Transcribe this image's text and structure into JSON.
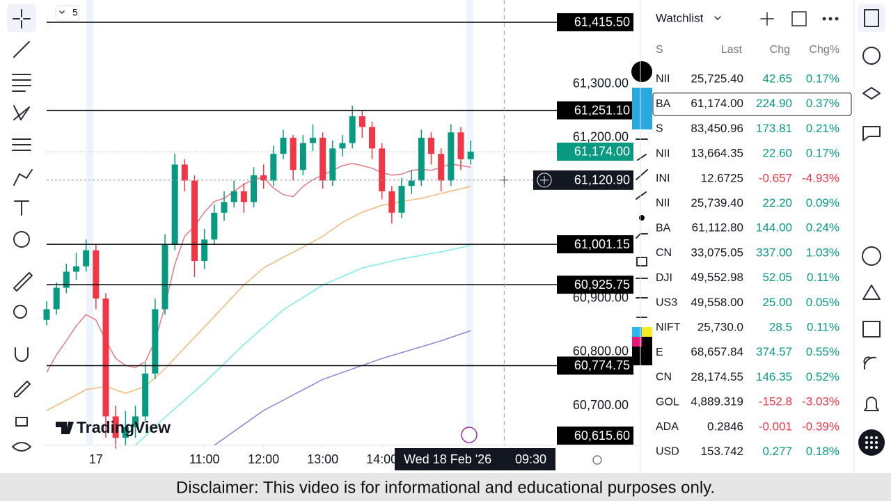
{
  "toolbar": {
    "badge": "5"
  },
  "chart_data": {
    "type": "candlestick",
    "logo": "TradingView",
    "ylim": [
      60626,
      61457
    ],
    "yticks": [
      {
        "value": 61300,
        "label": "61,300.00"
      },
      {
        "value": 61200,
        "label": "61,200.00"
      },
      {
        "value": 60900,
        "label": "60,900.00"
      },
      {
        "value": 60800,
        "label": "60,800.00"
      },
      {
        "value": 60700,
        "label": "60,700.00"
      }
    ],
    "xticks": [
      {
        "value": 5,
        "label": "17"
      },
      {
        "value": 16,
        "label": "11:00"
      },
      {
        "value": 22,
        "label": "12:00"
      },
      {
        "value": 28,
        "label": "13:00"
      },
      {
        "value": 34,
        "label": "14:00"
      }
    ],
    "up_color": "#089981",
    "down_color": "#f23645",
    "open": [
      60860,
      60880,
      60920,
      60950,
      60960,
      60990,
      60900,
      60680,
      60640,
      60660,
      60680,
      60760,
      60880,
      61000,
      61150,
      61120,
      60970,
      61010,
      61060,
      61080,
      61100,
      61080,
      61130,
      61120,
      61170,
      61200,
      61140,
      61190,
      61200,
      61120,
      61180,
      61190,
      61240,
      61220,
      61180,
      61100,
      61060,
      61110,
      61120,
      61200,
      61170,
      61120,
      61210,
      61160
    ],
    "high": [
      60895,
      60930,
      60965,
      60985,
      61010,
      61000,
      60910,
      60700,
      60690,
      60700,
      60780,
      60900,
      61020,
      61170,
      61160,
      61130,
      61030,
      61075,
      61100,
      61120,
      61115,
      61145,
      61150,
      61185,
      61215,
      61205,
      61205,
      61225,
      61210,
      61195,
      61205,
      61260,
      61250,
      61230,
      61190,
      61110,
      61125,
      61140,
      61215,
      61210,
      61180,
      61225,
      61220,
      61195
    ],
    "low": [
      60850,
      60870,
      60910,
      60935,
      60950,
      60880,
      60640,
      60620,
      60625,
      60640,
      60670,
      60750,
      60870,
      60990,
      61100,
      60940,
      60955,
      61000,
      61045,
      61070,
      61060,
      61070,
      61105,
      61110,
      61160,
      61120,
      61130,
      61175,
      61105,
      61110,
      61165,
      61180,
      61200,
      61160,
      61085,
      61040,
      61050,
      61095,
      61110,
      61150,
      61100,
      61110,
      61140,
      61150
    ],
    "close": [
      60880,
      60920,
      60950,
      60960,
      60990,
      60900,
      60680,
      60640,
      60660,
      60680,
      60760,
      60880,
      61000,
      61150,
      61120,
      60970,
      61010,
      61060,
      61080,
      61100,
      61080,
      61130,
      61120,
      61170,
      61200,
      61140,
      61190,
      61200,
      61120,
      61180,
      61190,
      61240,
      61220,
      61180,
      61100,
      61060,
      61110,
      61120,
      61200,
      61170,
      61120,
      61210,
      61160,
      61174
    ],
    "lines": [
      {
        "color": "#e57a82",
        "values": [
          60762,
          60795,
          60821,
          60849,
          60870,
          60860,
          60821,
          60788,
          60775,
          60771,
          60782,
          60821,
          60886,
          60964,
          61016,
          61035,
          61061,
          61081,
          61087,
          61100,
          61113,
          61122,
          61126,
          61106,
          61094,
          61090,
          61109,
          61122,
          61130,
          61139,
          61148,
          61152,
          61148,
          61143,
          61135,
          61130,
          61132,
          61139,
          61141,
          61139,
          61145,
          61151,
          61148,
          61145
        ]
      },
      {
        "color": "#f2b97a",
        "x": [
          0,
          2,
          4,
          6,
          8,
          10,
          12,
          14,
          16,
          18,
          20,
          22,
          24,
          26,
          28,
          30,
          32,
          34,
          36,
          38,
          40,
          43
        ],
        "values": [
          60691,
          60710,
          60730,
          60736,
          60723,
          60736,
          60769,
          60808,
          60847,
          60886,
          60925,
          60957,
          60977,
          60996,
          61016,
          61042,
          61061,
          61074,
          61081,
          61087,
          61096,
          61109
        ]
      },
      {
        "color": "#7de8e8",
        "x": [
          9,
          12,
          16,
          20,
          24,
          28,
          32,
          36,
          40,
          43
        ],
        "values": [
          60626,
          60678,
          60743,
          60814,
          60879,
          60925,
          60957,
          60974,
          60987,
          60999
        ]
      },
      {
        "color": "#8c7fd6",
        "x": [
          17,
          22,
          28,
          34,
          40,
          43
        ],
        "values": [
          60626,
          60691,
          60749,
          60788,
          60821,
          60840
        ]
      }
    ],
    "levels": [
      {
        "value": 61415.5,
        "label": "61,415.50"
      },
      {
        "value": 61251.1,
        "label": "61,251.10"
      },
      {
        "value": 61001.15,
        "label": "61,001.15"
      },
      {
        "value": 60925.75,
        "label": "60,925.75"
      },
      {
        "value": 60774.75,
        "label": "60,774.75"
      },
      {
        "value": 60615.6,
        "label": "60,615.60"
      }
    ],
    "last_price": {
      "value": 61174,
      "label": "61,174.00",
      "color": "#089981"
    },
    "crosshair": {
      "value": 61120.9,
      "label": "61,120.90",
      "x": 46.4,
      "date": "Wed 18 Feb '26",
      "time": "09:30"
    }
  },
  "watchlist": {
    "title": "Watchlist",
    "columns": [
      "S",
      "Last",
      "Chg",
      "Chg%"
    ],
    "rows": [
      {
        "name": "NII",
        "last": "25,725.40",
        "chg": "42.65",
        "pct": "0.17%",
        "color": "#089981"
      },
      {
        "name": "BA",
        "last": "61,174.00",
        "chg": "224.90",
        "pct": "0.37%",
        "color": "#089981"
      },
      {
        "name": "S",
        "last": "83,450.96",
        "chg": "173.81",
        "pct": "0.21%",
        "color": "#089981"
      },
      {
        "name": "NII",
        "last": "13,664.35",
        "chg": "22.60",
        "pct": "0.17%",
        "color": "#089981"
      },
      {
        "name": "INI",
        "last": "12.6725",
        "chg": "-0.657",
        "pct": "-4.93%",
        "color": "#f23645"
      },
      {
        "name": "NII",
        "last": "25,739.40",
        "chg": "22.20",
        "pct": "0.09%",
        "color": "#089981"
      },
      {
        "name": "BA",
        "last": "61,112.80",
        "chg": "144.00",
        "pct": "0.24%",
        "color": "#089981"
      },
      {
        "name": "CN",
        "last": "33,075.05",
        "chg": "337.00",
        "pct": "1.03%",
        "color": "#089981"
      },
      {
        "name": "DJI",
        "last": "49,552.98",
        "chg": "52.05",
        "pct": "0.11%",
        "color": "#089981"
      },
      {
        "name": "US3",
        "last": "49,558.00",
        "chg": "25.00",
        "pct": "0.05%",
        "color": "#089981"
      },
      {
        "name": "NIFT",
        "last": "25,730.0",
        "chg": "28.5",
        "pct": "0.11%",
        "color": "#089981"
      },
      {
        "name": "E",
        "last": "68,657.84",
        "chg": "374.57",
        "pct": "0.55%",
        "color": "#089981"
      },
      {
        "name": "CN",
        "last": "28,174.55",
        "chg": "146.35",
        "pct": "0.52%",
        "color": "#089981"
      },
      {
        "name": "GOL",
        "last": "4,889.319",
        "chg": "-152.8",
        "pct": "-3.03%",
        "color": "#f23645"
      },
      {
        "name": "ADA",
        "last": "0.2846",
        "chg": "-0.001",
        "pct": "-0.39%",
        "color": "#f23645"
      },
      {
        "name": "USD",
        "last": "153.742",
        "chg": "0.277",
        "pct": "0.18%",
        "color": "#089981"
      }
    ]
  },
  "disclaimer": "Disclaimer: This video is for informational and educational purposes only."
}
